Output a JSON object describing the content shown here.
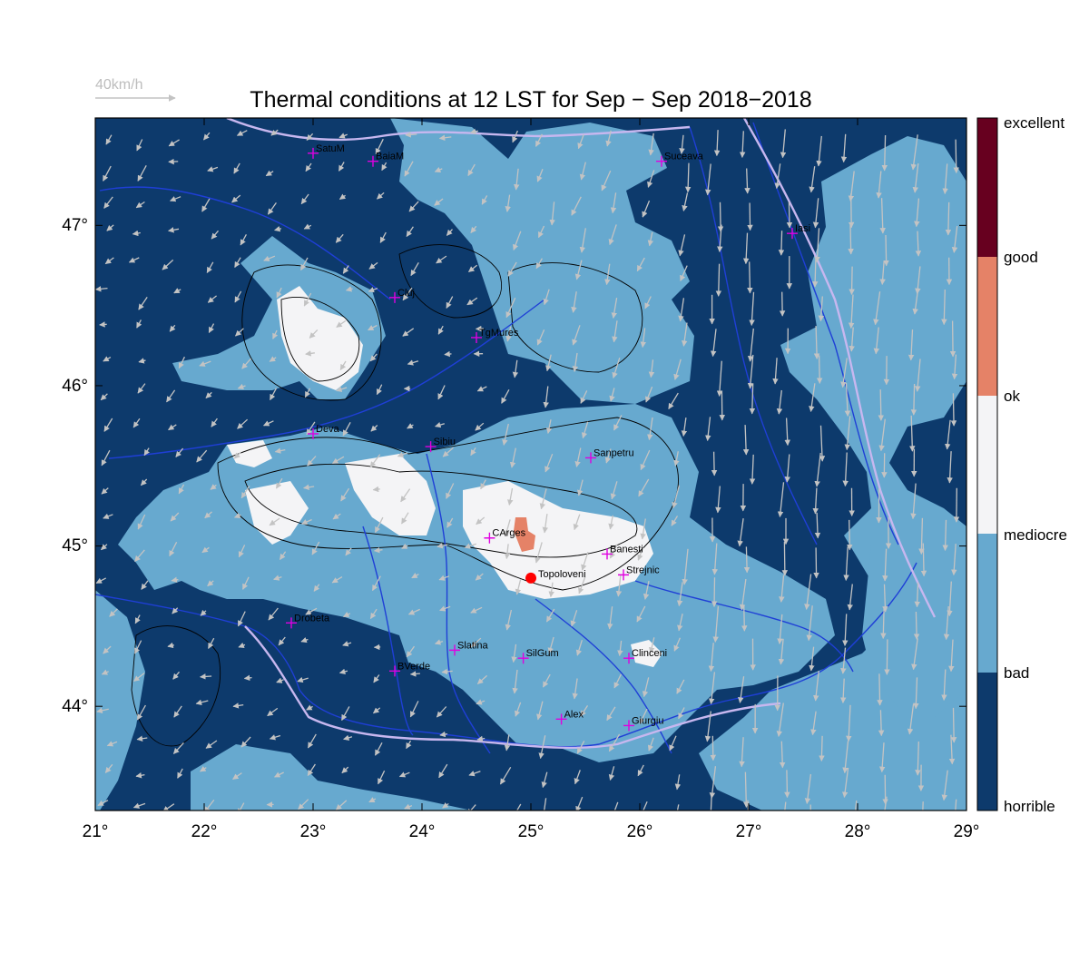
{
  "title": "Thermal conditions at 12 LST for Sep − Sep  2018−2018",
  "wind_reference": {
    "label": "40km/h"
  },
  "axes": {
    "x_ticks": [
      "21°",
      "22°",
      "23°",
      "24°",
      "25°",
      "26°",
      "27°",
      "28°",
      "29°"
    ],
    "y_ticks": [
      "47°",
      "46°",
      "45°",
      "44°"
    ],
    "lon_range": [
      21,
      29
    ],
    "lat_range": [
      43.35,
      47.67
    ]
  },
  "colorbar": {
    "labels": [
      "excellent",
      "good",
      "ok",
      "mediocre",
      "bad",
      "horrible"
    ],
    "colors": {
      "excellent": "#67001f",
      "good": "#e58267",
      "mediocre": "#f4f4f6",
      "bad": "#67a9cf",
      "horrible": "#0d3a6c"
    }
  },
  "colors": {
    "horrible": "#0d3a6c",
    "bad": "#67a9cf",
    "mediocre": "#f4f4f6",
    "ok": "#e58267",
    "river": "#1f3fd6",
    "border": "#c7b7ef",
    "arrow": "#c3c3c3",
    "contour": "#000000",
    "station": "#e000e0",
    "highlight": "#ff0000"
  },
  "stations": [
    {
      "name": "SatuM",
      "lon": 23.0,
      "lat": 47.45
    },
    {
      "name": "BaiaM",
      "lon": 23.55,
      "lat": 47.4
    },
    {
      "name": "Suceava",
      "lon": 26.2,
      "lat": 47.4
    },
    {
      "name": "Iasi",
      "lon": 27.4,
      "lat": 46.95
    },
    {
      "name": "Cluj",
      "lon": 23.75,
      "lat": 46.55
    },
    {
      "name": "TgMures",
      "lon": 24.5,
      "lat": 46.3
    },
    {
      "name": "Deva",
      "lon": 23.0,
      "lat": 45.7
    },
    {
      "name": "Sibiu",
      "lon": 24.08,
      "lat": 45.62
    },
    {
      "name": "Sanpetru",
      "lon": 25.55,
      "lat": 45.55
    },
    {
      "name": "CArges",
      "lon": 24.62,
      "lat": 45.05
    },
    {
      "name": "Banesti",
      "lon": 25.7,
      "lat": 44.95
    },
    {
      "name": "Strejnic",
      "lon": 25.85,
      "lat": 44.82
    },
    {
      "name": "Drobeta",
      "lon": 22.8,
      "lat": 44.52
    },
    {
      "name": "Slatina",
      "lon": 24.3,
      "lat": 44.35
    },
    {
      "name": "SilGum",
      "lon": 24.93,
      "lat": 44.3
    },
    {
      "name": "Clinceni",
      "lon": 25.9,
      "lat": 44.3
    },
    {
      "name": "BVerde",
      "lon": 23.75,
      "lat": 44.22
    },
    {
      "name": "Alex",
      "lon": 25.28,
      "lat": 43.92
    },
    {
      "name": "Giurgiu",
      "lon": 25.9,
      "lat": 43.88
    }
  ],
  "highlight_station": {
    "name": "Topoloveni",
    "lon": 25.0,
    "lat": 44.8
  }
}
